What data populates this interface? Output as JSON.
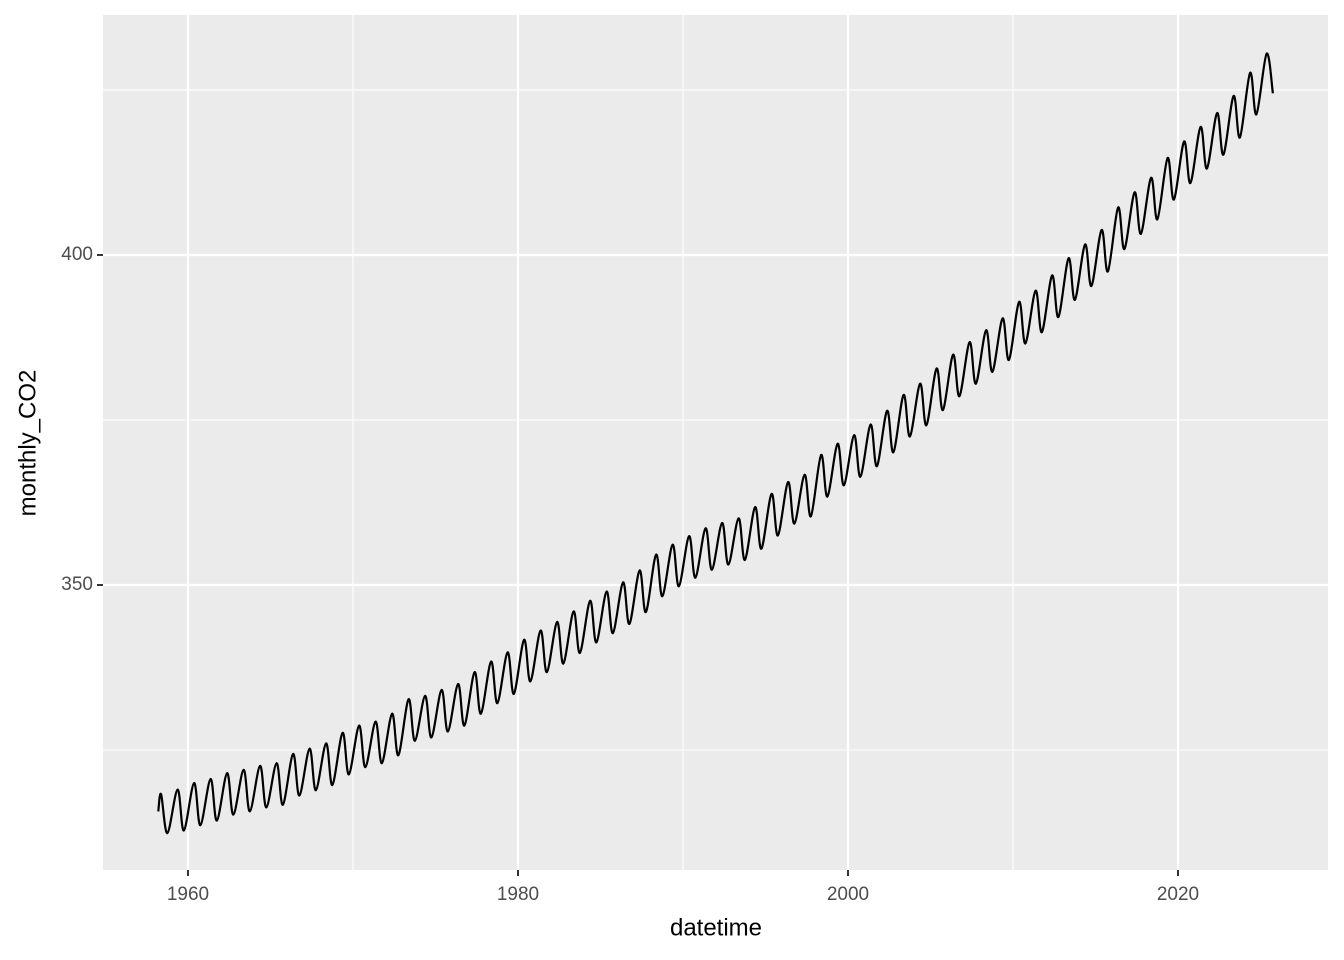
{
  "chart_data": {
    "type": "line",
    "x_label": "datetime",
    "y_label": "monthly_CO2",
    "xlim": [
      1954.85,
      2029.09
    ],
    "xticks": [
      1960,
      1980,
      2000,
      2020
    ],
    "ylim": [
      306.82,
      436.36
    ],
    "yticks": [
      350,
      400
    ],
    "grid": true,
    "series": [
      {
        "color": "#000000",
        "x": [
          1958.2,
          1958.37,
          1958.75,
          1959.37,
          1959.75,
          1960.37,
          1960.75,
          1961.37,
          1961.75,
          1962.37,
          1962.75,
          1963.37,
          1963.75,
          1964.37,
          1964.75,
          1965.37,
          1965.75,
          1966.37,
          1966.75,
          1967.37,
          1967.75,
          1968.37,
          1968.75,
          1969.37,
          1969.75,
          1970.37,
          1970.75,
          1971.37,
          1971.75,
          1972.37,
          1972.75,
          1973.37,
          1973.75,
          1974.37,
          1974.75,
          1975.37,
          1975.75,
          1976.37,
          1976.75,
          1977.37,
          1977.75,
          1978.37,
          1978.75,
          1979.37,
          1979.75,
          1980.37,
          1980.75,
          1981.37,
          1981.75,
          1982.37,
          1982.75,
          1983.37,
          1983.75,
          1984.37,
          1984.75,
          1985.37,
          1985.75,
          1986.37,
          1986.75,
          1987.37,
          1987.75,
          1988.37,
          1988.75,
          1989.37,
          1989.75,
          1990.37,
          1990.75,
          1991.37,
          1991.75,
          1992.37,
          1992.75,
          1993.37,
          1993.75,
          1994.37,
          1994.75,
          1995.37,
          1995.75,
          1996.37,
          1996.75,
          1997.37,
          1997.75,
          1998.37,
          1998.75,
          1999.37,
          1999.75,
          2000.37,
          2000.75,
          2001.37,
          2001.75,
          2002.37,
          2002.75,
          2003.37,
          2003.75,
          2004.37,
          2004.75,
          2005.37,
          2005.75,
          2006.37,
          2006.75,
          2007.37,
          2007.75,
          2008.37,
          2008.75,
          2009.37,
          2009.75,
          2010.37,
          2010.75,
          2011.37,
          2011.75,
          2012.37,
          2012.75,
          2013.37,
          2013.75,
          2014.37,
          2014.75,
          2015.37,
          2015.75,
          2016.37,
          2016.75,
          2017.37,
          2017.75,
          2018.37,
          2018.75,
          2019.37,
          2019.75,
          2020.37,
          2020.75,
          2021.37,
          2021.75,
          2022.37,
          2022.75,
          2023.37,
          2023.75,
          2024.37,
          2024.75,
          2025.37,
          2025.75
        ],
        "values": [
          315.7,
          318.3,
          312.4,
          319.0,
          312.8,
          320.0,
          313.6,
          320.6,
          314.3,
          321.5,
          315.2,
          322.0,
          315.7,
          322.6,
          316.3,
          323.0,
          316.7,
          324.4,
          318.1,
          325.2,
          318.9,
          326.0,
          319.7,
          327.6,
          321.3,
          328.7,
          322.4,
          329.3,
          323.0,
          330.5,
          324.2,
          332.7,
          326.4,
          333.2,
          326.9,
          334.1,
          327.8,
          335.0,
          328.7,
          336.8,
          330.5,
          338.4,
          332.1,
          339.8,
          333.5,
          341.7,
          335.4,
          343.1,
          336.8,
          344.4,
          338.1,
          346.0,
          339.7,
          347.6,
          341.3,
          349.0,
          342.7,
          350.4,
          344.1,
          352.2,
          345.9,
          354.6,
          348.3,
          356.1,
          349.8,
          357.4,
          351.1,
          358.6,
          352.3,
          359.4,
          353.1,
          360.1,
          353.8,
          361.8,
          355.5,
          363.8,
          357.5,
          365.6,
          359.3,
          366.7,
          360.4,
          369.7,
          363.4,
          371.4,
          365.1,
          372.7,
          366.4,
          374.3,
          368.0,
          376.4,
          370.1,
          378.8,
          372.5,
          380.5,
          374.2,
          382.8,
          376.5,
          384.9,
          378.6,
          386.8,
          380.5,
          388.6,
          382.3,
          390.4,
          384.1,
          392.9,
          386.6,
          394.6,
          388.3,
          396.9,
          390.6,
          399.5,
          393.2,
          401.6,
          395.3,
          403.8,
          397.5,
          407.2,
          400.9,
          409.5,
          403.2,
          411.7,
          405.4,
          414.7,
          408.4,
          417.2,
          410.9,
          419.4,
          413.1,
          421.5,
          415.2,
          424.1,
          417.8,
          427.6,
          421.3,
          430.5,
          424.5
        ]
      }
    ]
  }
}
